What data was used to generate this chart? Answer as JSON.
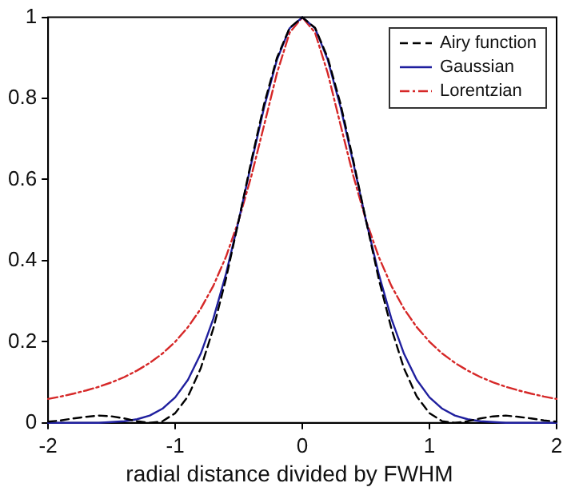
{
  "chart_data": {
    "type": "line",
    "xlabel": "radial distance divided by FWHM",
    "xlim": [
      -2,
      2
    ],
    "xticks": [
      -2,
      -1,
      0,
      1,
      2
    ],
    "ylim": [
      0,
      1
    ],
    "yticks": [
      0,
      0.2,
      0.4,
      0.6,
      0.8,
      1
    ],
    "grid": false,
    "legend": "top right",
    "marker": "none",
    "x": [
      -2,
      -1.9,
      -1.8,
      -1.7,
      -1.6,
      -1.5,
      -1.4,
      -1.3,
      -1.2,
      -1.1,
      -1,
      -0.9,
      -0.8,
      -0.7,
      -0.6,
      -0.5,
      -0.4,
      -0.3,
      -0.2,
      -0.1,
      0,
      0.1,
      0.2,
      0.3,
      0.4,
      0.5,
      0.6,
      0.7,
      0.8,
      0.9,
      1,
      1.1,
      1.2,
      1.3,
      1.4,
      1.5,
      1.6,
      1.7,
      1.8,
      1.9,
      2
    ],
    "series": [
      {
        "name": "Airy function",
        "color": "#000000",
        "line_style": "dashed",
        "values": [
          0.003,
          0.006,
          0.011,
          0.015,
          0.018,
          0.016,
          0.011,
          0.004,
          0,
          0.004,
          0.024,
          0.065,
          0.134,
          0.233,
          0.356,
          0.5,
          0.648,
          0.787,
          0.9,
          0.974,
          1,
          0.974,
          0.9,
          0.787,
          0.648,
          0.5,
          0.356,
          0.233,
          0.134,
          0.065,
          0.024,
          0.004,
          0,
          0.004,
          0.011,
          0.016,
          0.018,
          0.015,
          0.011,
          0.006,
          0.003
        ]
      },
      {
        "name": "Gaussian",
        "color": "#1f1f9e",
        "line_style": "solid",
        "values": [
          0,
          0,
          0,
          0,
          0,
          0.002,
          0.004,
          0.009,
          0.018,
          0.035,
          0.063,
          0.106,
          0.17,
          0.257,
          0.368,
          0.5,
          0.642,
          0.779,
          0.895,
          0.973,
          1,
          0.973,
          0.895,
          0.779,
          0.642,
          0.5,
          0.368,
          0.257,
          0.17,
          0.106,
          0.063,
          0.035,
          0.018,
          0.009,
          0.004,
          0.002,
          0,
          0,
          0,
          0,
          0
        ]
      },
      {
        "name": "Lorentzian",
        "color": "#d62828",
        "line_style": "dashdot",
        "values": [
          0.059,
          0.065,
          0.072,
          0.08,
          0.089,
          0.1,
          0.113,
          0.129,
          0.148,
          0.171,
          0.2,
          0.236,
          0.281,
          0.338,
          0.41,
          0.5,
          0.61,
          0.735,
          0.862,
          0.962,
          1,
          0.962,
          0.862,
          0.735,
          0.61,
          0.5,
          0.41,
          0.338,
          0.281,
          0.236,
          0.2,
          0.171,
          0.148,
          0.129,
          0.113,
          0.1,
          0.089,
          0.08,
          0.072,
          0.065,
          0.059
        ]
      }
    ]
  }
}
